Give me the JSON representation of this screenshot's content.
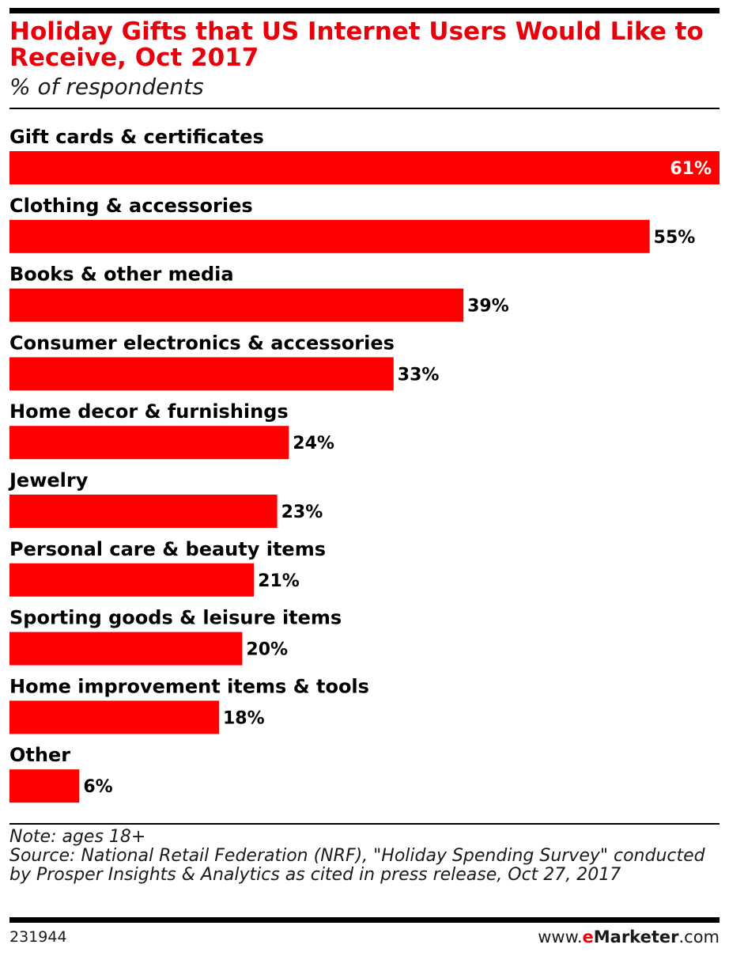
{
  "header": {
    "title": "Holiday Gifts that US Internet Users Would Like to Receive, Oct 2017",
    "subtitle": "% of respondents"
  },
  "chart_data": {
    "type": "bar",
    "orientation": "horizontal",
    "title": "Holiday Gifts that US Internet Users Would Like to Receive, Oct 2017",
    "subtitle": "% of respondents",
    "categories": [
      "Gift cards & certificates",
      "Clothing & accessories",
      "Books & other media",
      "Consumer electronics & accessories",
      "Home decor & furnishings",
      "Jewelry",
      "Personal care & beauty items",
      "Sporting goods & leisure items",
      "Home improvement items & tools",
      "Other"
    ],
    "values": [
      61,
      55,
      39,
      33,
      24,
      23,
      21,
      20,
      18,
      6
    ],
    "value_labels": [
      "61%",
      "55%",
      "39%",
      "33%",
      "24%",
      "23%",
      "21%",
      "20%",
      "18%",
      "6%"
    ],
    "unit": "%",
    "xlim": [
      0,
      61
    ],
    "grid": false,
    "legend": "none",
    "bar_color": "#ff0000"
  },
  "footer": {
    "note": "Note: ages 18+",
    "source": "Source: National Retail Federation (NRF), \"Holiday Spending Survey\" conducted by Prosper Insights & Analytics as cited in press release, Oct 27, 2017",
    "chart_id": "231944",
    "brand_prefix": "www.",
    "brand_e": "e",
    "brand_name": "Marketer",
    "brand_suffix": ".com"
  },
  "colors": {
    "title": "#e8000b",
    "bar": "#ff0000",
    "text": "#000000"
  }
}
